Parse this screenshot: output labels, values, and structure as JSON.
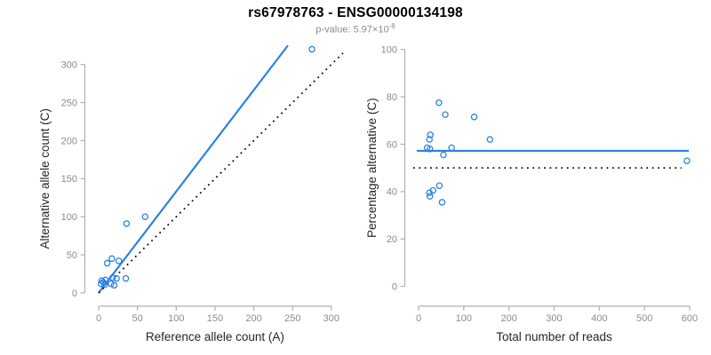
{
  "header": {
    "title": "rs67978763 - ENSG00000134198",
    "pvalue_prefix": "p-value: 5.97×10",
    "pvalue_exponent": "-8"
  },
  "colors": {
    "point_blue": "#2b82e3",
    "line_blue": "#2b82e3",
    "dotted_black": "#000000",
    "axis_line": "#b0b0b0",
    "tick_label": "#8c8c8c",
    "axis_title": "#262626",
    "background": "#ffffff"
  },
  "chart_data": [
    {
      "type": "scatter",
      "name": "allele-counts",
      "xlabel": "Reference allele count (A)",
      "ylabel": "Alternative allele count (C)",
      "xlim": [
        0,
        315
      ],
      "ylim": [
        0,
        325
      ],
      "x_ticks": [
        0,
        50,
        100,
        150,
        200,
        250,
        300
      ],
      "y_ticks": [
        0,
        50,
        100,
        150,
        200,
        250,
        300
      ],
      "grid": false,
      "points": [
        [
          275,
          320
        ],
        [
          60,
          100
        ],
        [
          36,
          91
        ],
        [
          17,
          45
        ],
        [
          26,
          42
        ],
        [
          11,
          39
        ],
        [
          18,
          20
        ],
        [
          23,
          19
        ],
        [
          35,
          19
        ],
        [
          9,
          17
        ],
        [
          4,
          16
        ],
        [
          6,
          14
        ],
        [
          3,
          12
        ],
        [
          16,
          12
        ],
        [
          20,
          10
        ],
        [
          8,
          11
        ]
      ],
      "lines": [
        {
          "name": "fitted-ratio-line",
          "style": "solid",
          "color_key": "line_blue",
          "slope": 1.33,
          "x0": 0,
          "y0": 0,
          "x1": 244,
          "y1": 325
        },
        {
          "name": "identity-line",
          "style": "dotted",
          "color_key": "dotted_black",
          "slope": 1,
          "x0": 0,
          "y0": 0,
          "x1": 315,
          "y1": 315
        }
      ]
    },
    {
      "type": "scatter",
      "name": "percentage-alternative",
      "xlabel": "Total number of reads",
      "ylabel": "Percentage alternative (C)",
      "xlim": [
        0,
        610
      ],
      "ylim": [
        0,
        100
      ],
      "x_ticks": [
        0,
        100,
        200,
        300,
        400,
        500,
        600
      ],
      "y_ticks": [
        0,
        20,
        40,
        60,
        80,
        100
      ],
      "grid": false,
      "points": [
        [
          45,
          77.5
        ],
        [
          59,
          72.5
        ],
        [
          123,
          71.5
        ],
        [
          26,
          64
        ],
        [
          24,
          62
        ],
        [
          158,
          62
        ],
        [
          19,
          58.5
        ],
        [
          25,
          58
        ],
        [
          73,
          58.5
        ],
        [
          55,
          55.5
        ],
        [
          46,
          42.5
        ],
        [
          32,
          40.5
        ],
        [
          24,
          39.5
        ],
        [
          25,
          38
        ],
        [
          52,
          35.5
        ],
        [
          594,
          53
        ]
      ],
      "lines": [
        {
          "name": "mean-percentage-line",
          "style": "solid",
          "color_key": "line_blue",
          "x0": -4,
          "y0": 57.2,
          "x1": 598,
          "y1": 57.2
        },
        {
          "name": "null-50-percent-line",
          "style": "dotted",
          "color_key": "dotted_black",
          "x0": -12,
          "y0": 50,
          "x1": 582,
          "y1": 50
        }
      ]
    }
  ]
}
